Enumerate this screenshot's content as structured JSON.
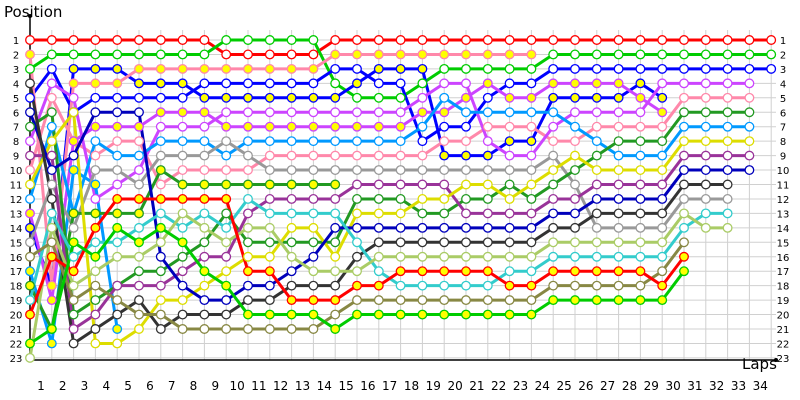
{
  "chart_data": {
    "type": "line",
    "title": "",
    "xlabel": "Laps",
    "ylabel": "Position",
    "x_ticks": [
      1,
      2,
      3,
      4,
      5,
      6,
      7,
      8,
      9,
      10,
      11,
      12,
      13,
      14,
      15,
      16,
      17,
      18,
      19,
      20,
      21,
      22,
      23,
      24,
      25,
      26,
      27,
      28,
      29,
      30,
      31,
      32,
      33,
      34
    ],
    "y_ticks": [
      1,
      2,
      3,
      4,
      5,
      6,
      7,
      8,
      9,
      10,
      11,
      12,
      13,
      14,
      15,
      16,
      17,
      18,
      19,
      20,
      21,
      22,
      23
    ],
    "xlim": [
      0,
      34
    ],
    "ylim": [
      23,
      1
    ],
    "y_inverted": true,
    "grid": true,
    "right_axis_labels": true,
    "series": [
      {
        "color": "#ff0000",
        "marker_fill": "#ffffff",
        "values": [
          1,
          1,
          1,
          1,
          1,
          1,
          1,
          1,
          1,
          2,
          2,
          2,
          2,
          2,
          1,
          1,
          1,
          1,
          1,
          1,
          1,
          1,
          1,
          1,
          1,
          1,
          1,
          1,
          1,
          1,
          1,
          1,
          1,
          1,
          1
        ]
      },
      {
        "color": "#00cc00",
        "marker_fill": "#ffffff",
        "values": [
          3,
          2,
          2,
          2,
          2,
          2,
          2,
          2,
          2,
          1,
          1,
          1,
          1,
          1,
          4,
          5,
          5,
          5,
          4,
          3,
          3,
          3,
          3,
          3,
          2,
          2,
          2,
          2,
          2,
          2,
          2,
          2,
          2,
          2,
          2
        ]
      },
      {
        "color": "#0000ff",
        "marker_fill": "#ffffff",
        "values": [
          5,
          3,
          6,
          5,
          5,
          5,
          5,
          5,
          4,
          4,
          4,
          4,
          4,
          4,
          3,
          3,
          4,
          4,
          8,
          7,
          7,
          5,
          4,
          4,
          3,
          3,
          3,
          3,
          3,
          3,
          3,
          3,
          3,
          3,
          3
        ]
      },
      {
        "color": "#0000ff",
        "marker_fill": "#ffff00",
        "values": [
          14,
          18,
          3,
          3,
          3,
          4,
          4,
          4,
          5,
          5,
          5,
          5,
          5,
          5,
          5,
          4,
          3,
          3,
          3,
          9,
          9,
          9,
          8,
          8,
          5,
          5,
          5,
          5,
          4,
          5
        ]
      },
      {
        "color": "#ff88aa",
        "marker_fill": "#ffff00",
        "values": [
          2,
          18,
          4,
          4,
          4,
          3,
          3,
          3,
          3,
          3,
          3,
          3,
          3,
          3,
          2,
          2,
          2,
          2,
          2,
          2,
          2,
          2,
          2,
          2
        ]
      },
      {
        "color": "#ff88aa",
        "marker_fill": "#ffffff",
        "values": [
          10,
          5,
          8,
          9,
          8,
          8,
          11,
          10,
          10,
          10,
          10,
          9,
          9,
          9,
          9,
          9,
          9,
          9,
          9,
          8,
          8,
          7,
          7,
          7,
          8,
          8,
          7,
          7,
          7,
          7,
          5,
          5,
          5,
          5
        ]
      },
      {
        "color": "#cc44ff",
        "marker_fill": "#ffffff",
        "values": [
          8,
          4,
          5,
          12,
          11,
          10,
          7,
          7,
          7,
          6,
          6,
          6,
          6,
          6,
          6,
          6,
          6,
          6,
          5,
          4,
          4,
          8,
          9,
          9,
          7,
          6,
          6,
          6,
          6,
          4,
          4,
          4,
          4,
          4
        ]
      },
      {
        "color": "#cc44ff",
        "marker_fill": "#ffff00",
        "values": [
          13,
          19,
          8,
          7,
          7,
          7,
          6,
          6,
          6,
          7,
          7,
          7,
          7,
          7,
          7,
          7,
          7,
          7,
          6,
          6,
          5,
          4,
          5,
          5,
          4,
          4,
          4,
          4,
          5,
          6
        ]
      },
      {
        "color": "#0099ff",
        "marker_fill": "#ffffff",
        "values": [
          12,
          7,
          13,
          8,
          9,
          9,
          8,
          8,
          8,
          9,
          8,
          8,
          8,
          8,
          8,
          8,
          8,
          8,
          7,
          5,
          6,
          6,
          6,
          6,
          6,
          7,
          8,
          9,
          9,
          9,
          7,
          7,
          7,
          7
        ]
      },
      {
        "color": "#0099ff",
        "marker_fill": "#ffff00",
        "values": [
          17,
          22,
          10,
          11,
          21
        ]
      },
      {
        "color": "#999999",
        "marker_fill": "#ffffff",
        "values": [
          15,
          11,
          14,
          10,
          10,
          11,
          9,
          9,
          9,
          8,
          9,
          10,
          10,
          10,
          10,
          10,
          10,
          10,
          10,
          10,
          10,
          10,
          10,
          10,
          9,
          11,
          14,
          14,
          14,
          14,
          12,
          12,
          12
        ]
      },
      {
        "color": "#229922",
        "marker_fill": "#ffffff",
        "values": [
          7,
          6,
          20,
          19,
          18,
          17,
          17,
          16,
          15,
          13,
          15,
          15,
          15,
          15,
          15,
          12,
          12,
          12,
          13,
          13,
          12,
          12,
          11,
          12,
          11,
          10,
          9,
          8,
          8,
          8,
          6,
          6,
          6,
          6
        ]
      },
      {
        "color": "#229922",
        "marker_fill": "#ffff00",
        "values": [
          18,
          21,
          13,
          13,
          13,
          13,
          10,
          11,
          11,
          11,
          11,
          11,
          11,
          11,
          11
        ]
      },
      {
        "color": "#993399",
        "marker_fill": "#ffffff",
        "values": [
          9,
          9,
          21,
          20,
          18,
          18,
          18,
          17,
          16,
          16,
          13,
          12,
          12,
          12,
          12,
          11,
          11,
          11,
          11,
          11,
          13,
          13,
          13,
          13,
          12,
          12,
          11,
          11,
          11,
          11,
          9,
          9,
          9,
          9
        ]
      },
      {
        "color": "#dddd00",
        "marker_fill": "#ffffff",
        "values": [
          11,
          8,
          6,
          22,
          22,
          21,
          19,
          19,
          18,
          17,
          16,
          16,
          14,
          14,
          16,
          13,
          13,
          13,
          12,
          12,
          11,
          11,
          12,
          11,
          10,
          9,
          10,
          10,
          10,
          10,
          8,
          8,
          8,
          8
        ]
      },
      {
        "color": "#0000bb",
        "marker_fill": "#ffffff",
        "values": [
          6,
          10,
          9,
          6,
          6,
          6,
          16,
          18,
          19,
          19,
          18,
          18,
          17,
          16,
          14,
          14,
          14,
          14,
          14,
          14,
          14,
          14,
          14,
          14,
          13,
          13,
          12,
          12,
          12,
          12,
          10,
          10,
          10,
          10
        ]
      },
      {
        "color": "#333333",
        "marker_fill": "#ffffff",
        "values": [
          4,
          12,
          22,
          21,
          20,
          19,
          21,
          20,
          20,
          20,
          19,
          19,
          18,
          18,
          18,
          16,
          15,
          15,
          15,
          15,
          15,
          15,
          15,
          15,
          14,
          14,
          13,
          13,
          13,
          13,
          11,
          11,
          11
        ]
      },
      {
        "color": "#33cccc",
        "marker_fill": "#ffffff",
        "values": [
          19,
          13,
          16,
          15,
          15,
          14,
          13,
          14,
          13,
          14,
          12,
          13,
          13,
          13,
          13,
          15,
          17,
          18,
          18,
          18,
          18,
          18,
          17,
          17,
          16,
          16,
          16,
          16,
          16,
          16,
          14,
          13,
          13
        ]
      },
      {
        "color": "#aacc66",
        "marker_fill": "#ffffff",
        "values": [
          23,
          14,
          18,
          17,
          16,
          16,
          15,
          13,
          14,
          15,
          14,
          14,
          16,
          17,
          17,
          17,
          16,
          16,
          16,
          16,
          16,
          16,
          16,
          16,
          15,
          15,
          15,
          15,
          15,
          15,
          13,
          14,
          14
        ]
      },
      {
        "color": "#888844",
        "marker_fill": "#ffffff",
        "values": [
          16,
          15,
          19,
          18,
          19,
          20,
          20,
          21,
          21,
          21,
          21,
          21,
          21,
          21,
          20,
          19,
          19,
          19,
          19,
          19,
          19,
          19,
          19,
          19,
          18,
          18,
          18,
          18,
          18,
          17,
          15
        ]
      },
      {
        "color": "#ff0000",
        "marker_fill": "#ffff00",
        "values": [
          20,
          16,
          17,
          14,
          12,
          12,
          12,
          12,
          12,
          12,
          17,
          17,
          19,
          19,
          19,
          18,
          18,
          17,
          17,
          17,
          17,
          17,
          18,
          18,
          17,
          17,
          17,
          17,
          17,
          18,
          16
        ]
      },
      {
        "color": "#00cc00",
        "marker_fill": "#ffff00",
        "values": [
          22,
          21,
          15,
          16,
          14,
          15,
          14,
          15,
          17,
          18,
          20,
          20,
          20,
          20,
          21,
          20,
          20,
          20,
          20,
          20,
          20,
          20,
          20,
          20,
          19,
          19,
          19,
          19,
          19,
          19,
          17
        ]
      }
    ]
  }
}
